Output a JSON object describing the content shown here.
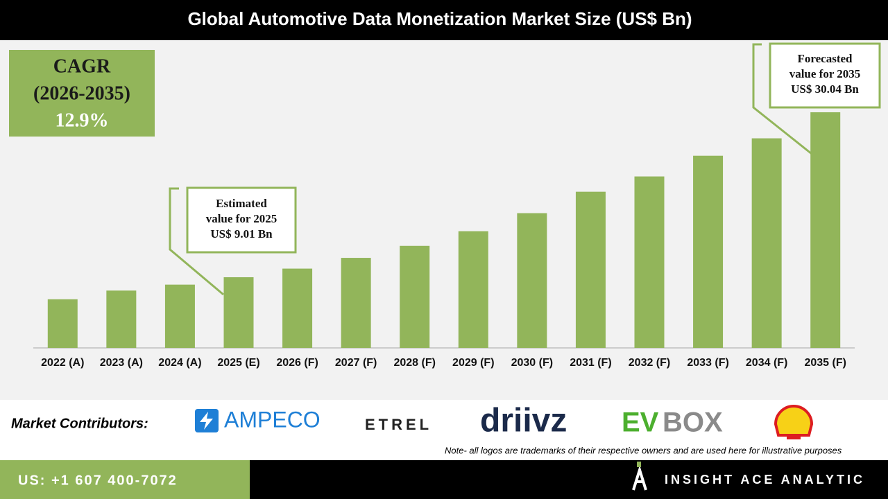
{
  "chart_data": {
    "type": "bar",
    "title": "Global Automotive Data Monetization Market Size (US$ Bn)",
    "categories": [
      "2022 (A)",
      "2023 (A)",
      "2024 (A)",
      "2025 (E)",
      "2026 (F)",
      "2027 (F)",
      "2028 (F)",
      "2029 (F)",
      "2030 (F)",
      "2031 (F)",
      "2032 (F)",
      "2033 (F)",
      "2034 (F)",
      "2035 (F)"
    ],
    "values": [
      6.2,
      7.31,
      8.07,
      9.01,
      10.11,
      11.48,
      13.01,
      14.88,
      17.18,
      19.91,
      21.86,
      24.5,
      26.72,
      30.04
    ],
    "color": "#92b55a",
    "annotations": [
      {
        "lines": [
          "Estimated",
          "value for 2025",
          "US$ 9.01 Bn"
        ]
      },
      {
        "lines": [
          "Forecasted",
          "value for 2035",
          "US$ 30.04 Bn"
        ]
      }
    ]
  },
  "cagr": {
    "label": "CAGR",
    "period": "(2026-2035)",
    "value": "12.9%"
  },
  "contributors": {
    "label": "Market Contributors:",
    "logos": [
      "AMPECO",
      "ETREL",
      "driivz",
      "EV",
      "BOX"
    ],
    "note": "Note- all logos are trademarks of their respective owners and are used here for illustrative purposes"
  },
  "footer": {
    "phone": "US: +1 607 400-7072",
    "brand": "INSIGHT ACE ANALYTIC"
  }
}
